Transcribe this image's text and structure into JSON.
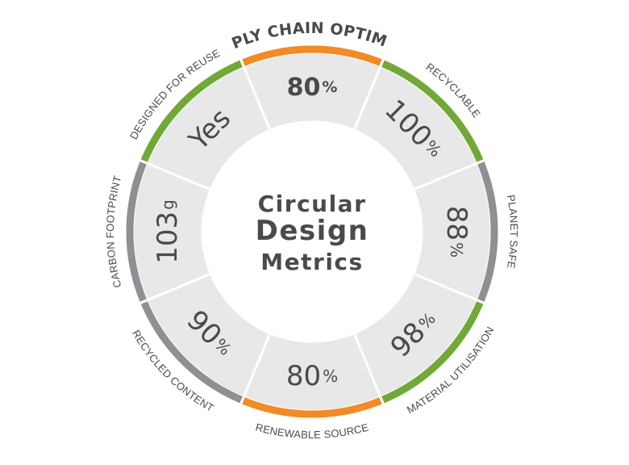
{
  "center": {
    "line1": "Circular",
    "line2": "Design",
    "line3": "Metrics"
  },
  "colors": {
    "orange": "#f28a27",
    "green": "#72a83a",
    "gray": "#8e9094",
    "segment": "#e8e8e8",
    "text": "#4a4a4a"
  },
  "segments": [
    {
      "id": "supply-chain-optimized",
      "label": "SUPPLY CHAIN OPTIMIZED",
      "value": "80",
      "unit": "%",
      "arc_color": "orange"
    },
    {
      "id": "recyclable",
      "label": "RECYCLABLE",
      "value": "100",
      "unit": "%",
      "arc_color": "green"
    },
    {
      "id": "planet-safe",
      "label": "PLANET SAFE",
      "value": "88",
      "unit": "%",
      "arc_color": "gray"
    },
    {
      "id": "material-utilisation",
      "label": "MATERIAL UTILISATION",
      "value": "98",
      "unit": "%",
      "arc_color": "green"
    },
    {
      "id": "renewable-source",
      "label": "RENEWABLE SOURCE",
      "value": "80",
      "unit": "%",
      "arc_color": "orange"
    },
    {
      "id": "recycled-content",
      "label": "RECYCLED CONTENT",
      "value": "90",
      "unit": "%",
      "arc_color": "gray"
    },
    {
      "id": "carbon-footprint",
      "label": "CARBON FOOTPRINT",
      "value": "103",
      "unit": "g",
      "arc_color": "gray"
    },
    {
      "id": "designed-for-reuse",
      "label": "DESIGNED FOR REUSE",
      "value": "Yes",
      "unit": "",
      "arc_color": "green"
    }
  ]
}
